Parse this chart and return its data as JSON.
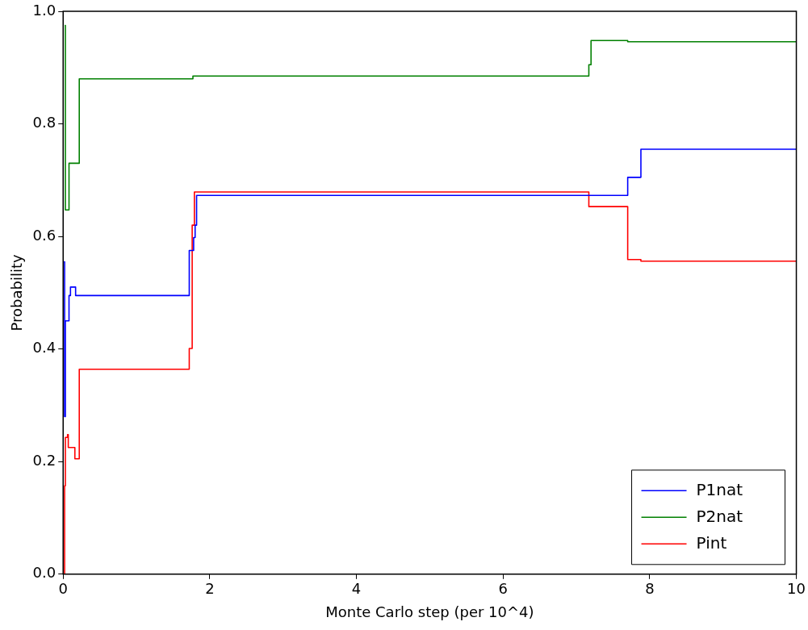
{
  "chart_data": {
    "type": "step",
    "xlabel": "Monte Carlo step (per 10^4)",
    "ylabel": "Probability",
    "xlim": [
      0,
      10
    ],
    "xticks": [
      0,
      2,
      4,
      6,
      8,
      10
    ],
    "ylim": [
      0,
      1
    ],
    "yticks": [
      {
        "value": 0,
        "label": "0.0"
      },
      {
        "value": 0.2,
        "label": "0.2"
      },
      {
        "value": 0.4,
        "label": "0.4"
      },
      {
        "value": 0.6,
        "label": "0.6"
      },
      {
        "value": 0.8,
        "label": "0.8"
      },
      {
        "value": 1,
        "label": "1.0"
      }
    ],
    "grid": false,
    "legend": "bottom right",
    "line_style": "solid",
    "marker": "none",
    "series": [
      {
        "name": "P1nat",
        "color": "#0000ff",
        "x": [
          0.01,
          0.02,
          0.03,
          0.08,
          0.1,
          0.17,
          1.72,
          1.78,
          1.8,
          1.82,
          7.7,
          7.88,
          10
        ],
        "values": [
          0.555,
          0.28,
          0.45,
          0.495,
          0.51,
          0.495,
          0.575,
          0.598,
          0.62,
          0.673,
          0.705,
          0.755,
          0.755
        ]
      },
      {
        "name": "P2nat",
        "color": "#008000",
        "x": [
          0.02,
          0.03,
          0.08,
          0.22,
          1.77,
          7.17,
          7.2,
          7.7,
          10
        ],
        "values": [
          0.975,
          0.647,
          0.73,
          0.88,
          0.885,
          0.905,
          0.948,
          0.946,
          0.946
        ]
      },
      {
        "name": "Pint",
        "color": "#ff0000",
        "x": [
          0.01,
          0.02,
          0.03,
          0.06,
          0.07,
          0.16,
          0.22,
          1.72,
          1.76,
          1.79,
          7.17,
          7.7,
          7.88,
          10
        ],
        "values": [
          0,
          0.157,
          0.243,
          0.248,
          0.225,
          0.205,
          0.364,
          0.401,
          0.62,
          0.679,
          0.653,
          0.559,
          0.556,
          0.556
        ]
      }
    ]
  }
}
